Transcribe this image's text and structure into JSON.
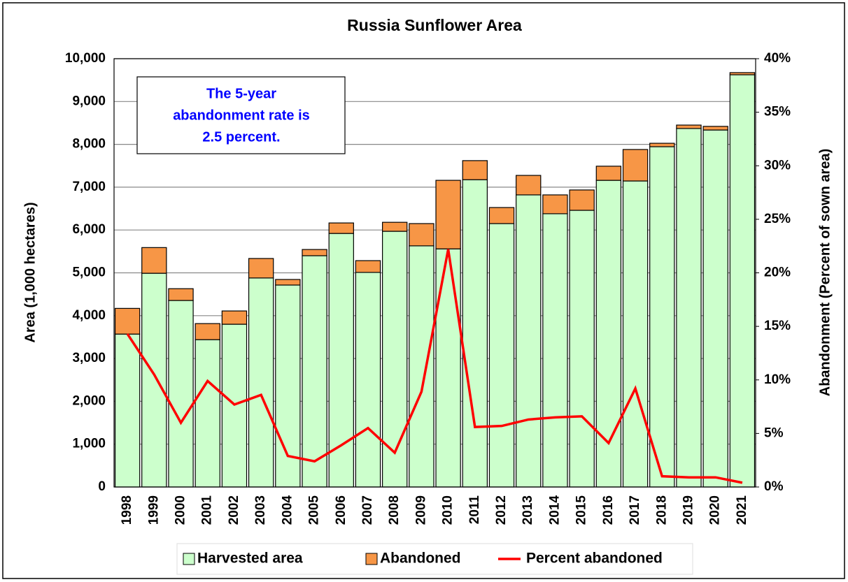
{
  "chart_data": {
    "type": "bar",
    "title": "Russia Sunflower Area",
    "y_label": "Area (1,000 hectares)",
    "y2_label": "Abandonment (Percent of sown area)",
    "annotation": [
      "The 5-year",
      "abandonment rate is",
      "2.5 percent."
    ],
    "categories": [
      "1998",
      "1999",
      "2000",
      "2001",
      "2002",
      "2003",
      "2004",
      "2005",
      "2006",
      "2007",
      "2008",
      "2009",
      "2010",
      "2011",
      "2012",
      "2013",
      "2014",
      "2015",
      "2016",
      "2017",
      "2018",
      "2019",
      "2020",
      "2021"
    ],
    "series": [
      {
        "name": "Harvested area",
        "color": "#ccffcc",
        "stack": "area",
        "values": [
          3570,
          4990,
          4355,
          3440,
          3800,
          4880,
          4715,
          5400,
          5920,
          5010,
          5970,
          5630,
          5560,
          7175,
          6150,
          6820,
          6380,
          6460,
          7160,
          7145,
          7945,
          8370,
          8335,
          9625
        ]
      },
      {
        "name": "Abandoned",
        "color": "#f79646",
        "stack": "area",
        "values": [
          600,
          600,
          275,
          375,
          310,
          455,
          130,
          145,
          245,
          275,
          210,
          520,
          1600,
          445,
          375,
          455,
          440,
          475,
          330,
          735,
          80,
          80,
          85,
          50
        ]
      },
      {
        "name": "Percent abandoned",
        "color": "#ff0000",
        "type": "line",
        "axis": "y2",
        "values": [
          14.3,
          10.5,
          6.0,
          9.9,
          7.7,
          8.6,
          2.9,
          2.4,
          3.9,
          5.5,
          3.2,
          8.9,
          22.2,
          5.6,
          5.7,
          6.3,
          6.5,
          6.6,
          4.1,
          9.2,
          1.0,
          0.9,
          0.9,
          0.4
        ]
      }
    ],
    "ylim": [
      0,
      10000
    ],
    "yticks": [
      0,
      {
        "value": 1000,
        "label": "1,000"
      },
      {
        "value": 2000,
        "label": "2,000"
      },
      {
        "value": 3000,
        "label": "3,000"
      },
      {
        "value": 4000,
        "label": "4,000"
      },
      {
        "value": 5000,
        "label": "5,000"
      },
      {
        "value": 6000,
        "label": "6,000"
      },
      {
        "value": 7000,
        "label": "7,000"
      },
      {
        "value": 8000,
        "label": "8,000"
      },
      {
        "value": 9000,
        "label": "9,000"
      },
      {
        "value": 10000,
        "label": "10,000"
      }
    ],
    "y2lim": [
      0,
      40
    ],
    "y2ticks": [
      {
        "value": 0,
        "label": "0%"
      },
      {
        "value": 5,
        "label": "5%"
      },
      {
        "value": 10,
        "label": "10%"
      },
      {
        "value": 15,
        "label": "15%"
      },
      {
        "value": 20,
        "label": "20%"
      },
      {
        "value": 25,
        "label": "25%"
      },
      {
        "value": 30,
        "label": "30%"
      },
      {
        "value": 35,
        "label": "35%"
      },
      {
        "value": 40,
        "label": "40%"
      }
    ],
    "grid": true,
    "legend": "bottom"
  }
}
